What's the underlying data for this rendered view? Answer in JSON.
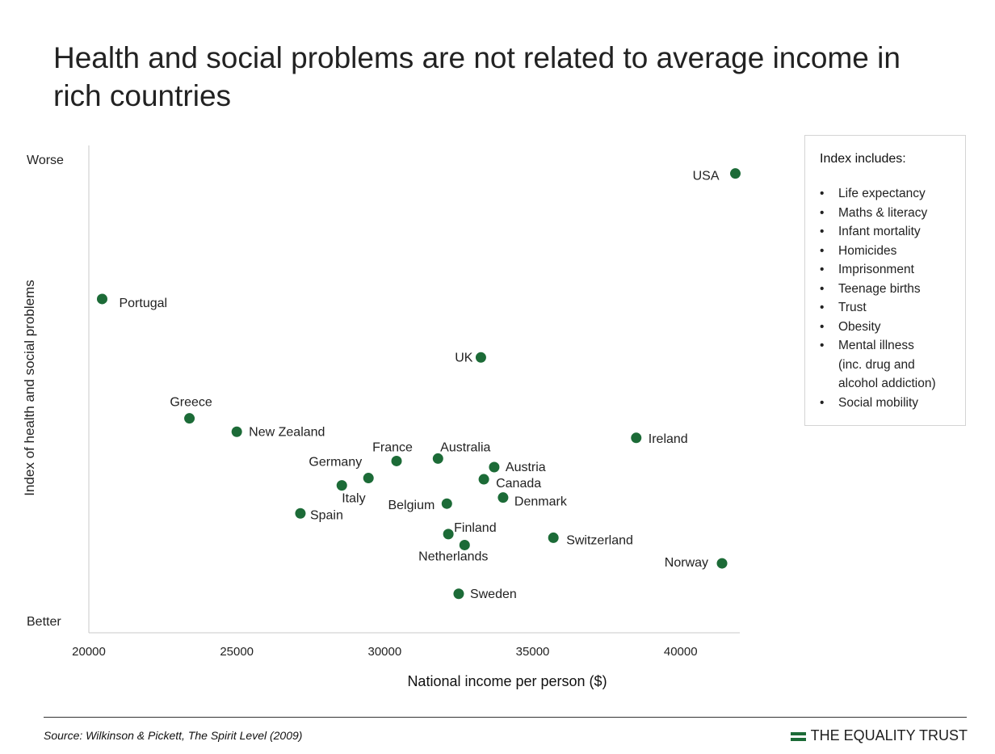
{
  "chart_data": {
    "type": "scatter",
    "title": "Health and social problems are not related to average income in rich countries",
    "xlabel": "National income per person ($)",
    "ylabel": "Index of health and social problems",
    "y_top_label": "Worse",
    "y_bottom_label": "Better",
    "xlim": [
      20000,
      42000
    ],
    "ylim": [
      -1.5,
      2.5
    ],
    "x_ticks": [
      20000,
      25000,
      30000,
      35000,
      40000
    ],
    "grid": false,
    "point_color": "#1c6b37",
    "points": [
      {
        "label": "USA",
        "x": 41850,
        "y": 2.27
      },
      {
        "label": "Portugal",
        "x": 20450,
        "y": 1.24
      },
      {
        "label": "UK",
        "x": 33250,
        "y": 0.76
      },
      {
        "label": "Greece",
        "x": 23400,
        "y": 0.26
      },
      {
        "label": "New Zealand",
        "x": 25000,
        "y": 0.15
      },
      {
        "label": "Ireland",
        "x": 38500,
        "y": 0.1
      },
      {
        "label": "France",
        "x": 30400,
        "y": -0.09
      },
      {
        "label": "Australia",
        "x": 31800,
        "y": -0.07
      },
      {
        "label": "Germany",
        "x": 29450,
        "y": -0.23
      },
      {
        "label": "Austria",
        "x": 33700,
        "y": -0.14
      },
      {
        "label": "Canada",
        "x": 33350,
        "y": -0.24
      },
      {
        "label": "Italy",
        "x": 28550,
        "y": -0.29
      },
      {
        "label": "Belgium",
        "x": 32100,
        "y": -0.44
      },
      {
        "label": "Denmark",
        "x": 34000,
        "y": -0.39
      },
      {
        "label": "Spain",
        "x": 27150,
        "y": -0.52
      },
      {
        "label": "Finland",
        "x": 32150,
        "y": -0.69
      },
      {
        "label": "Netherlands",
        "x": 32700,
        "y": -0.78
      },
      {
        "label": "Switzerland",
        "x": 35700,
        "y": -0.72
      },
      {
        "label": "Norway",
        "x": 41400,
        "y": -0.93
      },
      {
        "label": "Sweden",
        "x": 32500,
        "y": -1.18
      }
    ]
  },
  "legend_box": {
    "title": "Index includes:",
    "items": [
      "Life expectancy",
      "Maths & literacy",
      "Infant mortality",
      "Homicides",
      "Imprisonment",
      "Teenage births",
      "Trust",
      "Obesity",
      "Mental illness",
      "Social mobility"
    ],
    "mental_illness_note": "(inc. drug and alcohol addiction)"
  },
  "footer": {
    "source": "Source: Wilkinson & Pickett, The Spirit Level (2009)",
    "brand": "THE EQUALITY TRUST",
    "brand_icon": "equals-icon"
  }
}
